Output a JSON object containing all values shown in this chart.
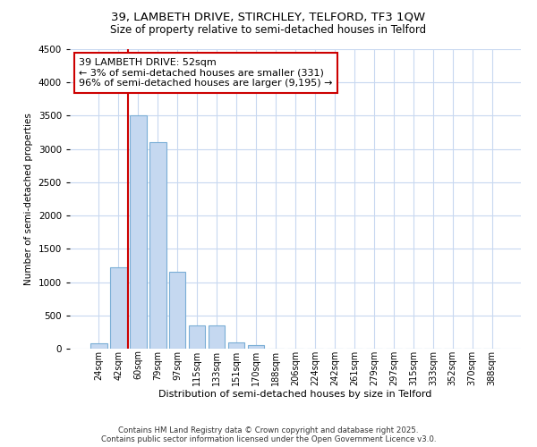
{
  "title1": "39, LAMBETH DRIVE, STIRCHLEY, TELFORD, TF3 1QW",
  "title2": "Size of property relative to semi-detached houses in Telford",
  "xlabel": "Distribution of semi-detached houses by size in Telford",
  "ylabel": "Number of semi-detached properties",
  "categories": [
    "24sqm",
    "42sqm",
    "60sqm",
    "79sqm",
    "97sqm",
    "115sqm",
    "133sqm",
    "151sqm",
    "170sqm",
    "188sqm",
    "206sqm",
    "224sqm",
    "242sqm",
    "261sqm",
    "279sqm",
    "297sqm",
    "315sqm",
    "333sqm",
    "352sqm",
    "370sqm",
    "388sqm"
  ],
  "values": [
    80,
    1220,
    3500,
    3100,
    1150,
    350,
    350,
    100,
    50,
    5,
    0,
    0,
    0,
    0,
    0,
    0,
    0,
    0,
    0,
    0,
    0
  ],
  "bar_color": "#c5d8f0",
  "bar_edge_color": "#7aaed6",
  "red_line_x": 1.5,
  "red_line_color": "#cc0000",
  "annotation_line1": "39 LAMBETH DRIVE: 52sqm",
  "annotation_line2": "← 3% of semi-detached houses are smaller (331)",
  "annotation_line3": "96% of semi-detached houses are larger (9,195) →",
  "ylim": [
    0,
    4500
  ],
  "yticks": [
    0,
    500,
    1000,
    1500,
    2000,
    2500,
    3000,
    3500,
    4000,
    4500
  ],
  "footer1": "Contains HM Land Registry data © Crown copyright and database right 2025.",
  "footer2": "Contains public sector information licensed under the Open Government Licence v3.0.",
  "fig_bg_color": "#ffffff",
  "plot_bg_color": "#ffffff",
  "grid_color": "#c8d8f0"
}
